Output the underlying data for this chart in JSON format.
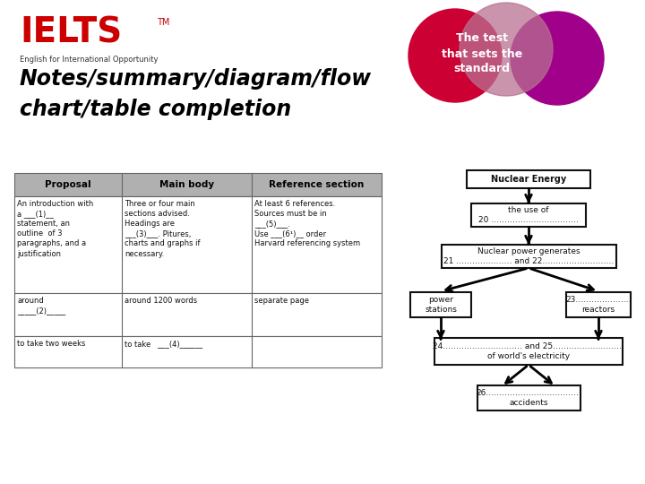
{
  "bg_color": "#ffffff",
  "title": "Notes/summary/diagram/flow\nchart/table completion",
  "ielts_text": "IELTS",
  "ielts_tm": "TM",
  "ielts_subtitle": "English for International Opportunity",
  "brand_text": "The test\nthat sets the\nstandard",
  "table_headers": [
    "Proposal",
    "Main body",
    "Reference section"
  ],
  "table_rows": [
    [
      "An introduction with\na ___(1)__\nstatement, an\noutline  of 3\nparagraphs, and a\njustification",
      "Three or four main\nsections advised.\nHeadings are\n___(3)___. Pìtures,\ncharts and graphs if\nnecessary.",
      "At least 6 references.\nSources must be in\n___(5)___.\nUse ___(6¹)__ order\nHarvard referencing system"
    ],
    [
      "around\n_____(2)_____",
      "around 1200 words",
      "separate page"
    ],
    [
      "to take two weeks",
      "to take   ___(4)______",
      ""
    ]
  ],
  "flow_boxes": [
    "Nuclear Energy",
    "the use of\n20 ……………………………",
    "Nuclear power generates\n21 ………………… and 22………………………",
    "power\nstations",
    "23…………………\nreactors",
    "24………………………… and 25………………………\nof world's electricity",
    "26………………………………\naccidents"
  ],
  "circle_colors": [
    "#cc0033",
    "#b87090",
    "#a0008a"
  ],
  "header_bg": "#b0b0b0",
  "table_border": "#666666",
  "red_color": "#cc0000",
  "flow_border": "#111111"
}
